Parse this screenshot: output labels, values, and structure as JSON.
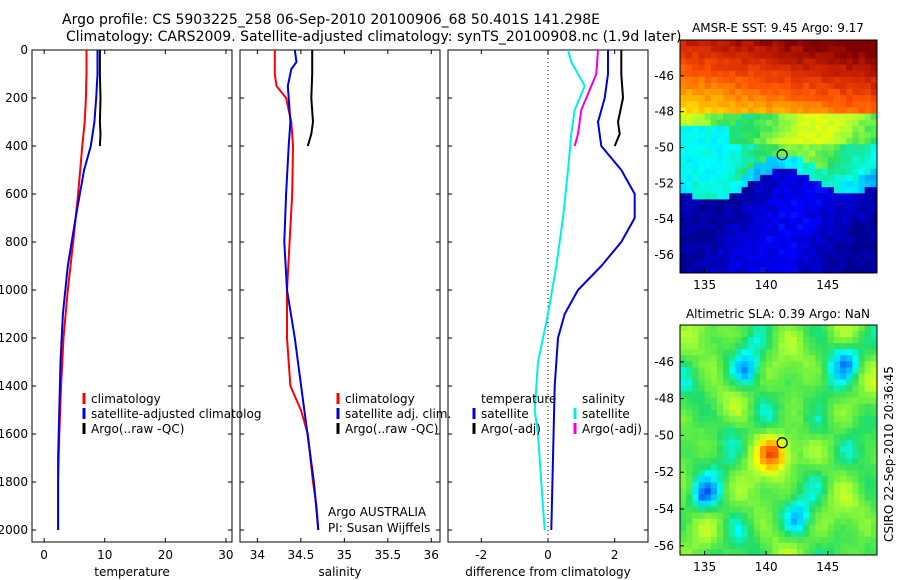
{
  "figure": {
    "title_line1": "Argo profile: CS 5903225_258 06-Sep-2010 20100906_68 50.401S 141.298E",
    "title_line2": "Climatology: CARS2009. Satellite-adjusted climatology: synTS_20100908.nc (1.9d later)",
    "credit": "CSIRO 22-Sep-2010 20:36:45",
    "float_note_1": "Argo AUSTRALIA",
    "float_note_2": "PI: Susan Wijffels"
  },
  "colors": {
    "climatology": "#ff0000",
    "satellite": "#0000dd",
    "argo": "#000000",
    "sal_satellite": "#00eeee",
    "sal_argo": "#ee00ee",
    "zero_line": "#000000"
  },
  "chart_data": [
    {
      "id": "temperature",
      "type": "line",
      "xlabel": "temperature",
      "ylabel": "",
      "xlim": [
        -2,
        31
      ],
      "ylim": [
        2050,
        0
      ],
      "xticks": [
        0,
        10,
        20,
        30
      ],
      "xtick_labels": [
        "0",
        "10",
        "20",
        "30"
      ],
      "yticks": [
        0,
        200,
        400,
        600,
        800,
        1000,
        1200,
        1400,
        1600,
        1800,
        2000
      ],
      "ytick_labels": [
        "0",
        "200",
        "400",
        "600",
        "800",
        "1000",
        "1200",
        "1400",
        "1600",
        "1800",
        "2000"
      ],
      "legend": [
        "climatology",
        "satellite-adjusted climatolog",
        "Argo(..raw -QC)"
      ],
      "legend_placement": "lower-right",
      "series": [
        {
          "name": "climatology",
          "color_key": "climatology",
          "x": [
            7.0,
            7.0,
            6.9,
            6.7,
            6.3,
            5.6,
            4.8,
            3.9,
            3.2,
            2.8,
            2.5,
            2.3,
            2.3
          ],
          "y": [
            0,
            100,
            200,
            300,
            400,
            600,
            800,
            1000,
            1200,
            1400,
            1600,
            1800,
            2000
          ]
        },
        {
          "name": "satellite-adjusted climatolog",
          "color_key": "satellite",
          "x": [
            8.8,
            8.8,
            8.6,
            8.3,
            7.7,
            6.6,
            5.2,
            3.9,
            3.1,
            2.7,
            2.5,
            2.3,
            2.3
          ],
          "y": [
            0,
            100,
            200,
            300,
            400,
            500,
            700,
            900,
            1100,
            1300,
            1500,
            1700,
            2000
          ]
        },
        {
          "name": "Argo(..raw -QC)",
          "color_key": "argo",
          "x": [
            9.2,
            9.2,
            9.3,
            9.2,
            9.3,
            9.2
          ],
          "y": [
            0,
            100,
            200,
            300,
            350,
            400
          ]
        }
      ]
    },
    {
      "id": "salinity",
      "type": "line",
      "xlabel": "salinity",
      "ylabel": "",
      "xlim": [
        33.8,
        36.1
      ],
      "ylim": [
        2050,
        0
      ],
      "xticks": [
        34,
        34.5,
        35,
        35.5,
        36
      ],
      "xtick_labels": [
        "34",
        "34.5",
        "35",
        "35.5",
        "36"
      ],
      "yticks": [
        0,
        200,
        400,
        600,
        800,
        1000,
        1200,
        1400,
        1600,
        1800,
        2000
      ],
      "legend": [
        "climatology",
        "satellite adj. clim.",
        "Argo(..raw -QC)"
      ],
      "legend_placement": "lower-right",
      "series": [
        {
          "name": "climatology",
          "color_key": "climatology",
          "x": [
            34.2,
            34.2,
            34.22,
            34.33,
            34.39,
            34.41,
            34.4,
            34.37,
            34.34,
            34.34,
            34.38,
            34.5,
            34.58,
            34.64,
            34.68,
            34.7
          ],
          "y": [
            0,
            100,
            150,
            200,
            300,
            400,
            600,
            800,
            1000,
            1200,
            1400,
            1500,
            1600,
            1800,
            1900,
            2000
          ]
        },
        {
          "name": "satellite adj. clim.",
          "color_key": "satellite",
          "x": [
            34.43,
            34.45,
            34.39,
            34.35,
            34.36,
            34.38,
            34.36,
            34.33,
            34.31,
            34.34,
            34.43,
            34.54,
            34.65,
            34.7
          ],
          "y": [
            0,
            50,
            80,
            150,
            200,
            300,
            400,
            600,
            800,
            1000,
            1200,
            1500,
            1800,
            2000
          ]
        },
        {
          "name": "Argo(..raw -QC)",
          "color_key": "argo",
          "x": [
            34.63,
            34.63,
            34.62,
            34.64,
            34.62,
            34.58
          ],
          "y": [
            0,
            100,
            200,
            300,
            350,
            400
          ]
        }
      ]
    },
    {
      "id": "difference",
      "type": "line",
      "xlabel": "difference from climatology",
      "ylabel": "",
      "xlim": [
        -3,
        3
      ],
      "ylim": [
        2050,
        0
      ],
      "xticks": [
        -2,
        0,
        2
      ],
      "xtick_labels": [
        "-2",
        "0",
        "2"
      ],
      "yticks": [
        0,
        200,
        400,
        600,
        800,
        1000,
        1200,
        1400,
        1600,
        1800,
        2000
      ],
      "legend_temperature_heading": "temperature",
      "legend_salinity_heading": "salinity",
      "legend_temperature": [
        "satellite",
        "Argo(-adj)"
      ],
      "legend_salinity": [
        "satellite",
        "Argo(-adj)"
      ],
      "legend_placement": "lower-right",
      "series": [
        {
          "name": "temperature satellite",
          "color_key": "satellite",
          "x": [
            1.8,
            1.8,
            1.7,
            1.5,
            1.6,
            2.2,
            2.6,
            2.6,
            2.2,
            1.6,
            0.9,
            0.5,
            0.3,
            0.2,
            0.15,
            0.1
          ],
          "y": [
            0,
            100,
            200,
            300,
            400,
            500,
            600,
            700,
            800,
            900,
            1000,
            1100,
            1200,
            1400,
            1700,
            2000
          ]
        },
        {
          "name": "temperature Argo(-adj)",
          "color_key": "argo",
          "x": [
            2.2,
            2.2,
            2.25,
            2.1,
            2.15,
            2.0
          ],
          "y": [
            0,
            100,
            200,
            300,
            350,
            400
          ]
        },
        {
          "name": "salinity satellite",
          "color_key": "sal_satellite",
          "x": [
            0.6,
            0.7,
            1.1,
            0.8,
            0.7,
            0.6,
            0.45,
            0.25,
            0.0,
            -0.3,
            -0.4,
            -0.3,
            -0.2,
            -0.15,
            -0.1
          ],
          "y": [
            0,
            50,
            150,
            250,
            350,
            500,
            700,
            900,
            1100,
            1300,
            1500,
            1600,
            1800,
            1900,
            2000
          ]
        },
        {
          "name": "salinity Argo(-adj)",
          "color_key": "sal_argo",
          "x": [
            1.5,
            1.45,
            1.3,
            1.0,
            0.9,
            0.8
          ],
          "y": [
            0,
            100,
            150,
            250,
            350,
            400
          ]
        }
      ]
    },
    {
      "id": "sst_map",
      "type": "heatmap",
      "title": "AMSR-E SST: 9.45 Argo: 9.17",
      "xlim": [
        133,
        149
      ],
      "ylim": [
        -57,
        -44
      ],
      "xticks": [
        135,
        140,
        145
      ],
      "xtick_labels": [
        "135",
        "140",
        "145"
      ],
      "yticks": [
        -46,
        -48,
        -50,
        -52,
        -54,
        -56
      ],
      "ytick_labels": [
        "-46",
        "-48",
        "-50",
        "-52",
        "-54",
        "-56"
      ],
      "marker": {
        "lon": 141.298,
        "lat": -50.401
      },
      "colorscale": [
        "#00008f",
        "#0000ff",
        "#00aaff",
        "#00ffff",
        "#22dd66",
        "#aaff33",
        "#ffff00",
        "#ffaa00",
        "#ff5500",
        "#cc2200",
        "#800000"
      ]
    },
    {
      "id": "sla_map",
      "type": "heatmap",
      "title": "Altimetric SLA: 0.39 Argo: NaN",
      "xlim": [
        133,
        149
      ],
      "ylim": [
        -56.5,
        -44
      ],
      "xticks": [
        135,
        140,
        145
      ],
      "xtick_labels": [
        "135",
        "140",
        "145"
      ],
      "yticks": [
        -46,
        -48,
        -50,
        -52,
        -54,
        -56
      ],
      "ytick_labels": [
        "-46",
        "-48",
        "-50",
        "-52",
        "-54",
        "-56"
      ],
      "marker": {
        "lon": 141.298,
        "lat": -50.401
      },
      "colorscale": [
        "#0000ff",
        "#00aaff",
        "#00ffff",
        "#22dd66",
        "#66ee44",
        "#aaff33",
        "#ffff00",
        "#ffaa00",
        "#ff5500",
        "#cc2200"
      ]
    }
  ]
}
